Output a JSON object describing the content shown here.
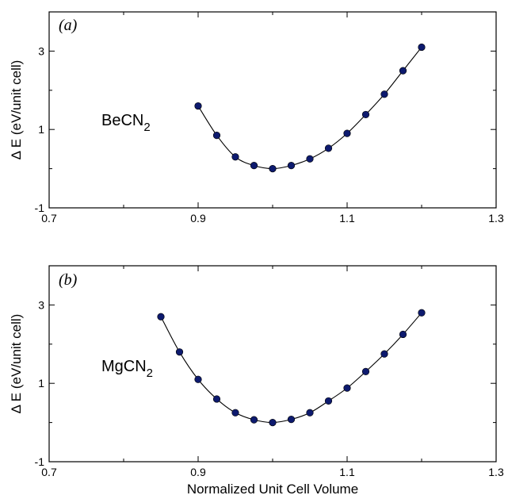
{
  "chart_data": [
    {
      "type": "line",
      "panel_label": "(a)",
      "compound": {
        "main": "BeCN",
        "sub": "2"
      },
      "ylabel": "Δ E (eV/unit cell)",
      "xlabel": "",
      "xlim": [
        0.7,
        1.3
      ],
      "ylim": [
        -1,
        4
      ],
      "xticks": [
        "0.7",
        "0.9",
        "1.1",
        "1.3"
      ],
      "yticks": [
        "-1",
        "1",
        "3"
      ],
      "grid": false,
      "marker_color": "#0d1a6e",
      "series": [
        {
          "x": [
            0.9,
            0.925,
            0.95,
            0.975,
            1.0,
            1.025,
            1.05,
            1.075,
            1.1,
            1.125,
            1.15,
            1.175,
            1.2
          ],
          "y": [
            1.6,
            0.85,
            0.3,
            0.08,
            0.0,
            0.08,
            0.25,
            0.52,
            0.9,
            1.38,
            1.9,
            2.5,
            3.1
          ]
        }
      ]
    },
    {
      "type": "line",
      "panel_label": "(b)",
      "compound": {
        "main": "MgCN",
        "sub": "2"
      },
      "ylabel": "Δ E (eV/unit cell)",
      "xlabel": "Normalized Unit Cell Volume",
      "xlim": [
        0.7,
        1.3
      ],
      "ylim": [
        -1,
        4
      ],
      "xticks": [
        "0.7",
        "0.9",
        "1.1",
        "1.3"
      ],
      "yticks": [
        "-1",
        "1",
        "3"
      ],
      "grid": false,
      "marker_color": "#0d1a6e",
      "series": [
        {
          "x": [
            0.85,
            0.875,
            0.9,
            0.925,
            0.95,
            0.975,
            1.0,
            1.025,
            1.05,
            1.075,
            1.1,
            1.125,
            1.15,
            1.175,
            1.2
          ],
          "y": [
            2.7,
            1.8,
            1.1,
            0.6,
            0.25,
            0.07,
            0.0,
            0.08,
            0.25,
            0.55,
            0.88,
            1.3,
            1.75,
            2.25,
            2.8
          ]
        }
      ]
    }
  ]
}
